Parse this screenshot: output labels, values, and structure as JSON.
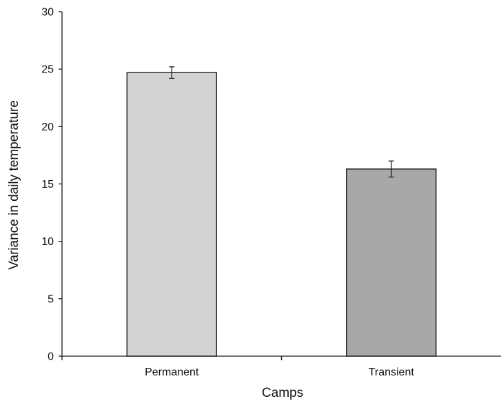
{
  "chart_data": {
    "type": "bar",
    "title": "",
    "xlabel": "Camps",
    "ylabel": "Variance in daily temperature",
    "categories": [
      "Permanent",
      "Transient"
    ],
    "values": [
      24.7,
      16.3
    ],
    "error": [
      0.5,
      0.7
    ],
    "bar_colors": [
      "#d3d3d3",
      "#a8a8a8"
    ],
    "ylim": [
      0,
      30
    ],
    "yticks": [
      0,
      5,
      10,
      15,
      20,
      25,
      30
    ],
    "grid": false,
    "legend": "none"
  }
}
